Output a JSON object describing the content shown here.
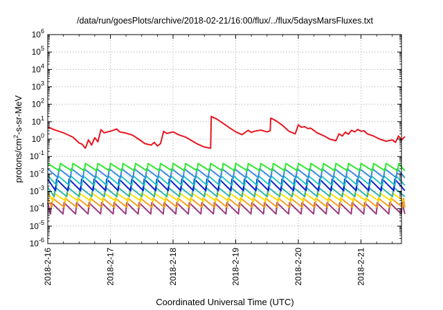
{
  "chart_data": {
    "type": "line",
    "title": "/data/run/goesPlots/archive/2018-02-21/16:00/flux/../flux/5daysMarsFluxes.txt",
    "xlabel": "Coordinated Universal Time (UTC)",
    "ylabel_main": "protons/cm",
    "ylabel_sup": "2",
    "ylabel_rest": "-s-sr-MeV",
    "yscale": "log",
    "ylim": [
      1e-06,
      1000000.0
    ],
    "xlim_days": [
      0,
      5.7
    ],
    "grid": true,
    "x_tick_labels": [
      "2018-2-16",
      "2018-2-17",
      "2018-2-18",
      "2018-2-19",
      "2018-2-20",
      "2018-2-21"
    ],
    "y_ticks": [
      {
        "base": "10",
        "exp": "-6"
      },
      {
        "base": "10",
        "exp": "-5"
      },
      {
        "base": "10",
        "exp": "-4"
      },
      {
        "base": "10",
        "exp": "-3"
      },
      {
        "base": "10",
        "exp": "-2"
      },
      {
        "base": "10",
        "exp": "-1"
      },
      {
        "base": "10",
        "exp": "0"
      },
      {
        "base": "10",
        "exp": "1"
      },
      {
        "base": "10",
        "exp": "2"
      },
      {
        "base": "10",
        "exp": "3"
      },
      {
        "base": "10",
        "exp": "4"
      },
      {
        "base": "10",
        "exp": "5"
      },
      {
        "base": "10",
        "exp": "6"
      }
    ],
    "red_series": {
      "color": "#e8141e",
      "x": [
        0.0,
        0.1,
        0.25,
        0.4,
        0.5,
        0.55,
        0.6,
        0.65,
        0.7,
        0.75,
        0.8,
        0.85,
        0.9,
        1.0,
        1.1,
        1.15,
        1.25,
        1.35,
        1.45,
        1.55,
        1.6,
        1.65,
        1.7,
        1.75,
        1.8,
        1.85,
        1.9,
        2.0,
        2.1,
        2.2,
        2.3,
        2.4,
        2.5,
        2.6,
        2.61,
        2.7,
        2.8,
        2.9,
        3.0,
        3.1,
        3.2,
        3.25,
        3.3,
        3.4,
        3.5,
        3.55,
        3.56,
        3.65,
        3.75,
        3.85,
        3.95,
        4.0,
        4.05,
        4.1,
        4.15,
        4.2,
        4.3,
        4.4,
        4.5,
        4.6,
        4.65,
        4.7,
        4.75,
        4.8,
        4.85,
        4.9,
        4.95,
        5.0,
        5.05,
        5.1,
        5.2,
        5.3,
        5.4,
        5.5,
        5.55,
        5.6,
        5.65,
        5.7
      ],
      "y": [
        5,
        3.5,
        2.3,
        1.3,
        0.6,
        0.5,
        0.3,
        0.9,
        0.45,
        1.2,
        0.7,
        3.5,
        2.3,
        2.8,
        3.8,
        2.6,
        2.2,
        1.7,
        1.0,
        0.55,
        0.5,
        0.45,
        0.65,
        0.4,
        0.55,
        2.8,
        2.1,
        2.6,
        1.7,
        1.3,
        0.8,
        0.5,
        0.35,
        0.3,
        20,
        14,
        8,
        4.5,
        2.6,
        1.8,
        3.2,
        2.4,
        2.8,
        3.3,
        2.6,
        3.0,
        16,
        11,
        6,
        2.8,
        2.0,
        6.5,
        4.8,
        5.2,
        4.0,
        4.2,
        2.3,
        1.6,
        1.0,
        0.8,
        2.0,
        1.5,
        2.5,
        1.9,
        3.2,
        2.6,
        3.6,
        2.8,
        3.0,
        2.0,
        1.5,
        1.0,
        0.75,
        0.9,
        0.65,
        1.5,
        0.9,
        1.4
      ]
    },
    "sawtooth_series": [
      {
        "color": "#2ee82e",
        "top": 0.04,
        "bottom": 0.015,
        "phase": 0.0
      },
      {
        "color": "#3a8be0",
        "top": 0.02,
        "bottom": 0.006,
        "phase": 0.02
      },
      {
        "color": "#22c4c4",
        "top": 0.008,
        "bottom": 0.0022,
        "phase": 0.04
      },
      {
        "color": "#1020d0",
        "top": 0.005,
        "bottom": 0.0011,
        "phase": 0.06
      },
      {
        "color": "#2bb4b4",
        "top": 0.0017,
        "bottom": 0.0005,
        "phase": 0.08
      },
      {
        "color": "#ffe000",
        "top": 0.0008,
        "bottom": 0.00028,
        "phase": 0.1
      },
      {
        "color": "#f4a020",
        "top": 0.0004,
        "bottom": 0.00012,
        "phase": 0.12
      },
      {
        "color": "#993a80",
        "top": 0.00022,
        "bottom": 5e-05,
        "phase": 0.14
      }
    ],
    "sawtooth_period_days": 0.2
  }
}
